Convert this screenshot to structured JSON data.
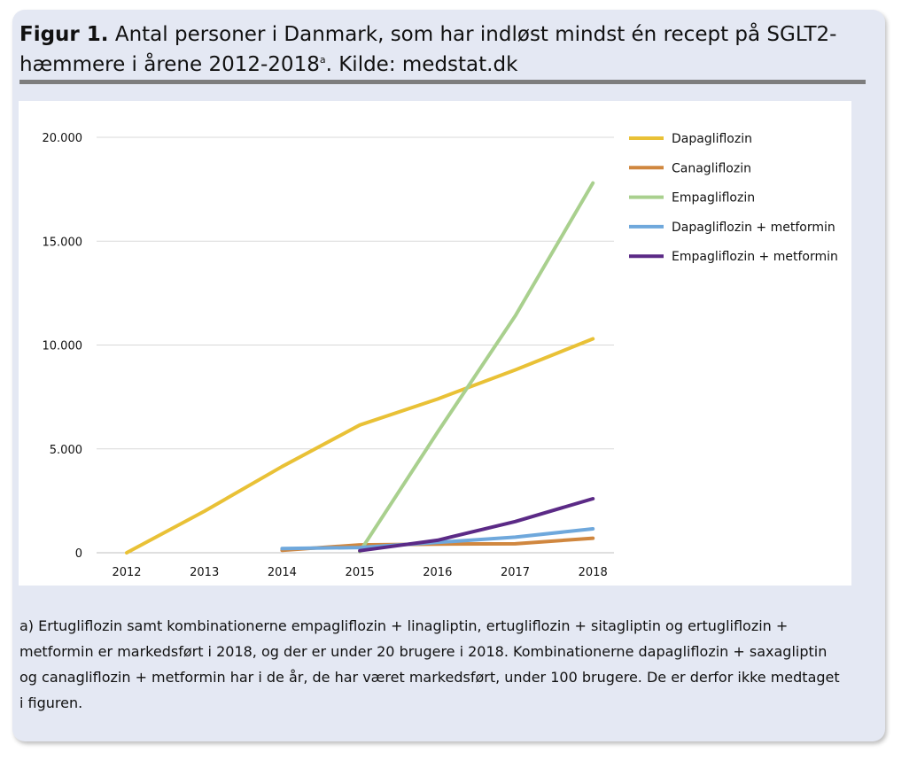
{
  "figure": {
    "title_bold": "Figur 1.",
    "title_text": " Antal personer i Danmark, som har indløst mindst én recept på SGLT2-hæmmere i årene 2012-2018",
    "title_sup": "a",
    "title_end": ". Kilde: medstat.dk",
    "footnote": "a) Ertugliflozin samt kombinationerne empagliflozin + linagliptin, ertugliflozin + sitagliptin og ertugliflozin + metformin er markedsført i 2018, og der er under 20 brugere i 2018. Kombinationerne dapagliflozin + saxagliptin og canagliflozin + metformin har i de år, de har været markedsført, under 100 brugere. De er derfor ikke medtaget i figuren."
  },
  "chart_data": {
    "type": "line",
    "title": "",
    "xlabel": "",
    "ylabel": "",
    "categories": [
      "2012",
      "2013",
      "2014",
      "2015",
      "2016",
      "2017",
      "2018"
    ],
    "ylim": [
      0,
      20000
    ],
    "yticks": [
      0,
      5000,
      10000,
      15000,
      20000
    ],
    "ytick_labels": [
      "0",
      "5.000",
      "10.000",
      "15.000",
      "20.000"
    ],
    "grid": true,
    "legend_position": "right",
    "series": [
      {
        "name": "Dapagliflozin",
        "color": "#e9c136",
        "values": [
          0,
          2000,
          4150,
          6150,
          7400,
          8800,
          10300
        ]
      },
      {
        "name": "Canagliflozin",
        "color": "#d0873f",
        "values": [
          null,
          null,
          120,
          380,
          420,
          430,
          700
        ]
      },
      {
        "name": "Empagliflozin",
        "color": "#a9d08e",
        "values": [
          null,
          null,
          null,
          50,
          5800,
          11400,
          17800
        ]
      },
      {
        "name": "Dapagliflozin + metformin",
        "color": "#6fa8dc",
        "values": [
          null,
          null,
          200,
          250,
          500,
          750,
          1150
        ]
      },
      {
        "name": "Empagliflozin + metformin",
        "color": "#5b2a86",
        "values": [
          null,
          null,
          null,
          100,
          600,
          1500,
          2600
        ]
      }
    ]
  }
}
